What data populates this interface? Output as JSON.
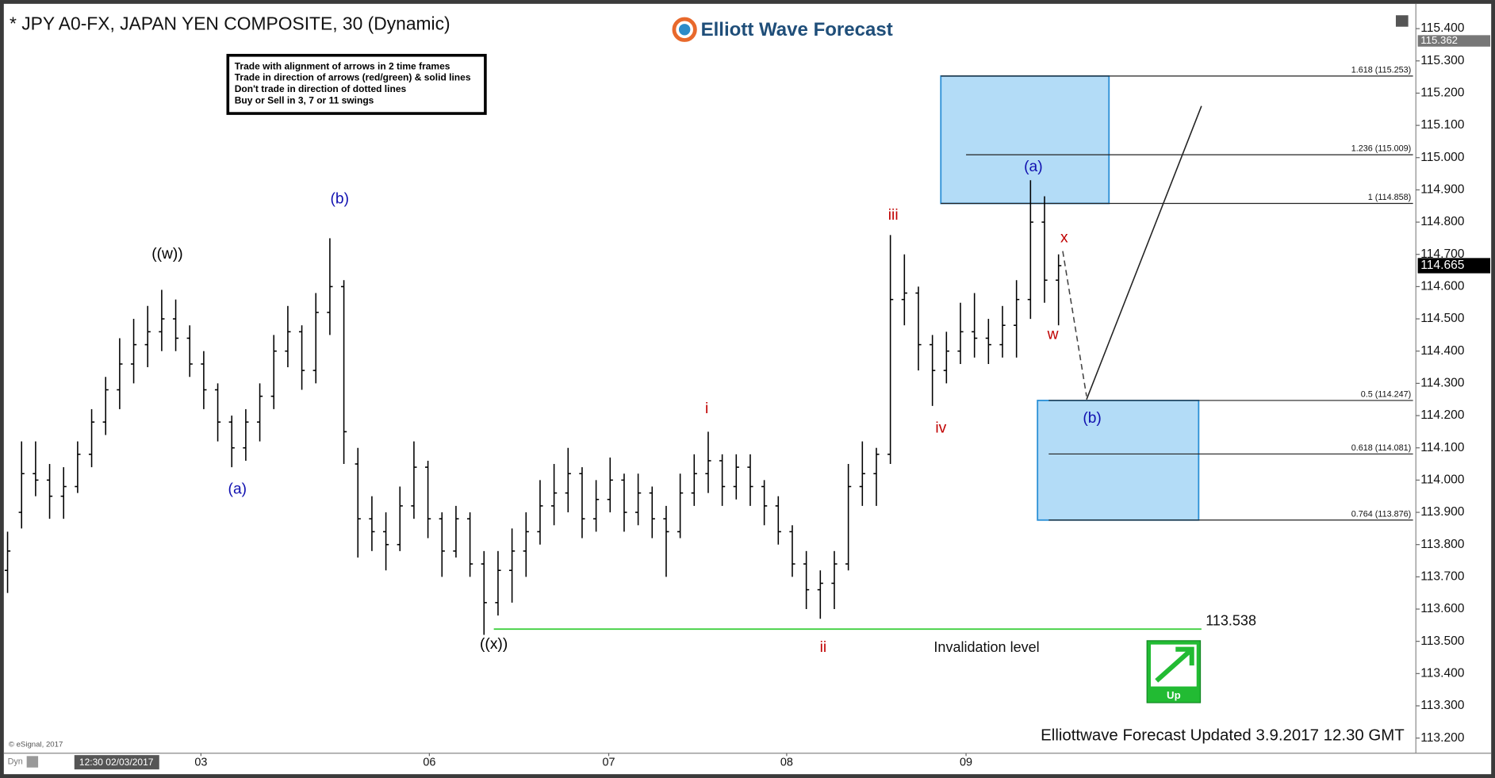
{
  "chart_data": {
    "type": "ohlc",
    "title": "* JPY A0-FX, JAPAN YEN COMPOSITE, 30 (Dynamic)",
    "brand": "Elliott Wave Forecast",
    "notes": [
      "Trade with alignment of arrows in 2 time frames",
      "Trade in direction of arrows (red/green) & solid lines",
      "Don't trade in direction of dotted lines",
      "Buy or Sell in 3, 7 or 11 swings"
    ],
    "footer": "Elliottwave Forecast Updated 3.9.2017 12.30 GMT",
    "source": "© eSignal, 2017",
    "cursor_time": "12:30 02/03/2017",
    "mode": "Dyn",
    "signal": "Up",
    "color": "#000000",
    "open": [
      113.72,
      113.9,
      114.02,
      114.0,
      113.95,
      113.98,
      114.08,
      114.18,
      114.28,
      114.36,
      114.42,
      114.46,
      114.5,
      114.44,
      114.36,
      114.28,
      114.18,
      114.1,
      114.18,
      114.26,
      114.4,
      114.46,
      114.34,
      114.52,
      114.6,
      114.05,
      113.88,
      113.84,
      113.8,
      113.92,
      114.04,
      113.88,
      113.78,
      113.88,
      113.74,
      113.62,
      113.72,
      113.78,
      113.84,
      113.92,
      113.96,
      114.02,
      113.88,
      113.94,
      114.0,
      113.9,
      113.96,
      113.88,
      113.84,
      113.96,
      114.02,
      114.06,
      113.98,
      114.04,
      113.98,
      113.92,
      113.84,
      113.74,
      113.66,
      113.68,
      113.74,
      113.98,
      114.02,
      114.08,
      114.56,
      114.58,
      114.42,
      114.34,
      114.4,
      114.46,
      114.44,
      114.42,
      114.48,
      114.56,
      114.8,
      114.62
    ],
    "high": [
      113.84,
      114.12,
      114.12,
      114.05,
      114.04,
      114.12,
      114.22,
      114.32,
      114.44,
      114.5,
      114.54,
      114.59,
      114.56,
      114.48,
      114.4,
      114.3,
      114.2,
      114.22,
      114.3,
      114.45,
      114.54,
      114.48,
      114.58,
      114.75,
      114.62,
      114.1,
      113.95,
      113.9,
      113.98,
      114.12,
      114.06,
      113.9,
      113.92,
      113.9,
      113.78,
      113.78,
      113.85,
      113.9,
      114.0,
      114.05,
      114.1,
      114.04,
      114.0,
      114.07,
      114.02,
      114.02,
      113.98,
      113.92,
      114.02,
      114.08,
      114.15,
      114.08,
      114.08,
      114.08,
      114.0,
      113.95,
      113.86,
      113.78,
      113.72,
      113.78,
      114.05,
      114.12,
      114.1,
      114.76,
      114.7,
      114.6,
      114.45,
      114.46,
      114.55,
      114.58,
      114.5,
      114.54,
      114.62,
      114.93,
      114.88,
      114.7
    ],
    "low": [
      113.65,
      113.85,
      113.95,
      113.88,
      113.88,
      113.96,
      114.04,
      114.14,
      114.22,
      114.3,
      114.35,
      114.4,
      114.4,
      114.32,
      114.22,
      114.12,
      114.04,
      114.06,
      114.12,
      114.22,
      114.35,
      114.28,
      114.3,
      114.45,
      114.05,
      113.76,
      113.78,
      113.72,
      113.78,
      113.88,
      113.82,
      113.7,
      113.76,
      113.7,
      113.52,
      113.58,
      113.62,
      113.7,
      113.8,
      113.86,
      113.9,
      113.82,
      113.84,
      113.9,
      113.84,
      113.86,
      113.82,
      113.7,
      113.82,
      113.92,
      113.96,
      113.92,
      113.94,
      113.92,
      113.86,
      113.8,
      113.7,
      113.6,
      113.57,
      113.6,
      113.72,
      113.92,
      113.92,
      114.05,
      114.48,
      114.34,
      114.23,
      114.3,
      114.36,
      114.38,
      114.36,
      114.38,
      114.38,
      114.5,
      114.55,
      114.48
    ],
    "close": [
      113.78,
      114.02,
      114.0,
      113.95,
      113.98,
      114.08,
      114.18,
      114.28,
      114.36,
      114.42,
      114.46,
      114.5,
      114.44,
      114.36,
      114.28,
      114.18,
      114.1,
      114.18,
      114.26,
      114.4,
      114.46,
      114.34,
      114.52,
      114.6,
      114.15,
      113.88,
      113.84,
      113.8,
      113.92,
      114.04,
      113.88,
      113.78,
      113.88,
      113.74,
      113.62,
      113.72,
      113.78,
      113.84,
      113.92,
      113.96,
      114.02,
      113.88,
      113.94,
      114.0,
      113.9,
      113.96,
      113.88,
      113.84,
      113.96,
      114.02,
      114.06,
      113.98,
      114.04,
      113.98,
      113.92,
      113.84,
      113.74,
      113.66,
      113.68,
      113.74,
      113.98,
      114.02,
      114.08,
      114.56,
      114.58,
      114.42,
      114.34,
      114.4,
      114.46,
      114.44,
      114.42,
      114.48,
      114.56,
      114.8,
      114.62,
      114.665
    ],
    "xlim": [
      -0.2,
      100.5
    ],
    "xticks": [
      {
        "value": 13.8,
        "label": "03"
      },
      {
        "value": 30.1,
        "label": "06"
      },
      {
        "value": 42.9,
        "label": "07"
      },
      {
        "value": 55.6,
        "label": "08"
      },
      {
        "value": 68.4,
        "label": "09"
      }
    ],
    "ylim": [
      113.159,
      115.474
    ],
    "yticks": [
      {
        "value": 113.2,
        "label": "113.200"
      },
      {
        "value": 113.3,
        "label": "113.300"
      },
      {
        "value": 113.4,
        "label": "113.400"
      },
      {
        "value": 113.5,
        "label": "113.500"
      },
      {
        "value": 113.6,
        "label": "113.600"
      },
      {
        "value": 113.7,
        "label": "113.700"
      },
      {
        "value": 113.8,
        "label": "113.800"
      },
      {
        "value": 113.9,
        "label": "113.900"
      },
      {
        "value": 114.0,
        "label": "114.000"
      },
      {
        "value": 114.1,
        "label": "114.100"
      },
      {
        "value": 114.2,
        "label": "114.200"
      },
      {
        "value": 114.3,
        "label": "114.300"
      },
      {
        "value": 114.4,
        "label": "114.400"
      },
      {
        "value": 114.5,
        "label": "114.500"
      },
      {
        "value": 114.6,
        "label": "114.600"
      },
      {
        "value": 114.7,
        "label": "114.700"
      },
      {
        "value": 114.8,
        "label": "114.800"
      },
      {
        "value": 114.9,
        "label": "114.900"
      },
      {
        "value": 115.0,
        "label": "115.000"
      },
      {
        "value": 115.1,
        "label": "115.100"
      },
      {
        "value": 115.2,
        "label": "115.200"
      },
      {
        "value": 115.3,
        "label": "115.300"
      },
      {
        "value": 115.4,
        "label": "115.400"
      }
    ],
    "last_price": 114.665,
    "session_high": 115.362,
    "levels": [
      {
        "price": 115.253,
        "label": "1.618 (115.253)"
      },
      {
        "price": 115.009,
        "label": "1.236 (115.009)"
      },
      {
        "price": 114.858,
        "label": "1 (114.858)"
      },
      {
        "price": 114.247,
        "label": "0.5 (114.247)"
      },
      {
        "price": 114.081,
        "label": "0.618 (114.081)"
      },
      {
        "price": 113.876,
        "label": "0.764 (113.876)"
      }
    ],
    "zone_color": "#b3dcf7",
    "invalidation": {
      "value": 113.538,
      "label": "Invalidation level",
      "color": "#33cc33"
    },
    "wave_labels": [
      {
        "text": "((w))",
        "color": "#000000"
      },
      {
        "text": "(b)",
        "color": "#1010b0"
      },
      {
        "text": "(a)",
        "color": "#1010b0"
      },
      {
        "text": "((x))",
        "color": "#000000"
      },
      {
        "text": "i",
        "color": "#c00000"
      },
      {
        "text": "ii",
        "color": "#c00000"
      },
      {
        "text": "iii",
        "color": "#c00000"
      },
      {
        "text": "iv",
        "color": "#c00000"
      },
      {
        "text": "(a)",
        "color": "#1010b0"
      },
      {
        "text": "x",
        "color": "#c00000"
      },
      {
        "text": "w",
        "color": "#c00000"
      },
      {
        "text": "(b)",
        "color": "#1010b0"
      }
    ]
  }
}
